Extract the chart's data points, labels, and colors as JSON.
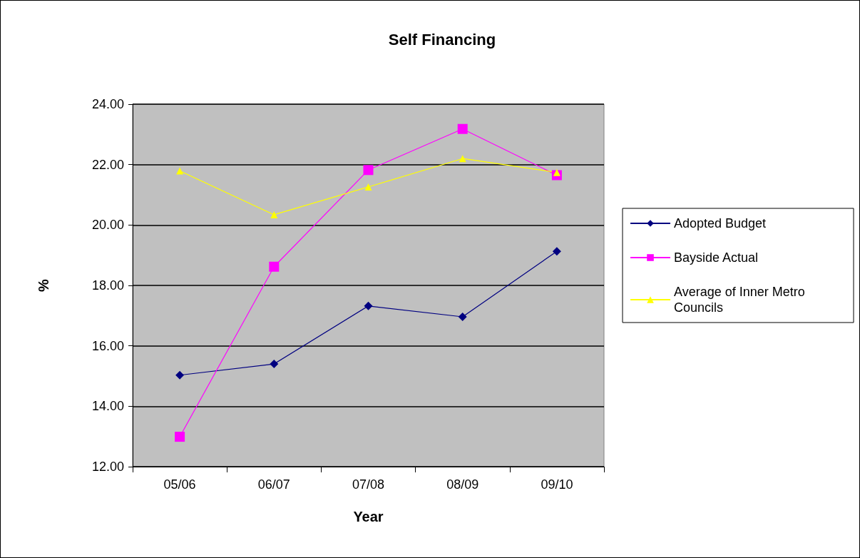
{
  "chart_data": {
    "type": "line",
    "title": "Self Financing",
    "xlabel": "Year",
    "ylabel": "%",
    "categories": [
      "05/06",
      "06/07",
      "07/08",
      "08/09",
      "09/10"
    ],
    "series": [
      {
        "name": "Adopted Budget",
        "color": "#000080",
        "marker": "diamond",
        "values": [
          15.03,
          15.4,
          17.32,
          16.96,
          19.13
        ]
      },
      {
        "name": "Bayside Actual",
        "color": "#ff00ff",
        "marker": "square",
        "values": [
          12.99,
          18.62,
          21.82,
          23.18,
          21.65
        ]
      },
      {
        "name": "Average of Inner Metro Councils",
        "color": "#ffff00",
        "marker": "triangle",
        "values": [
          21.79,
          20.34,
          21.26,
          22.2,
          21.74
        ]
      }
    ],
    "ylim": [
      12,
      24
    ],
    "yticks": [
      {
        "value": 12,
        "label": "12.00"
      },
      {
        "value": 14,
        "label": "14.00"
      },
      {
        "value": 16,
        "label": "16.00"
      },
      {
        "value": 18,
        "label": "18.00"
      },
      {
        "value": 20,
        "label": "20.00"
      },
      {
        "value": 22,
        "label": "22.00"
      },
      {
        "value": 24,
        "label": "24.00"
      }
    ],
    "grid": "y",
    "legend": "right",
    "line_style": "solid"
  }
}
